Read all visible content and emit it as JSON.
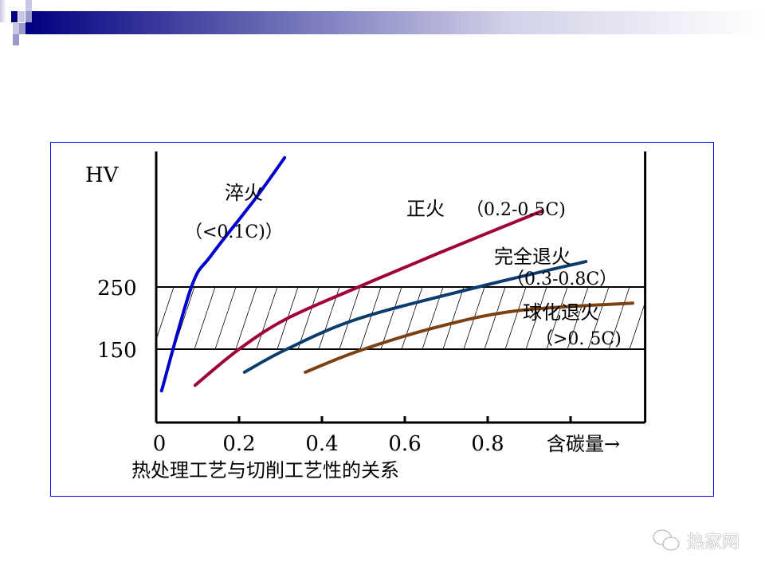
{
  "slide": {
    "accent_color": "#000080",
    "watermark": "热家网",
    "watermark_icon": "wechat-icon"
  },
  "chart_data": {
    "type": "line",
    "title": "",
    "caption": "热处理工艺与切削工艺性的关系",
    "xlabel": "含碳量→",
    "ylabel": "HV",
    "xlim": [
      0,
      1.18
    ],
    "ylim": [
      32,
      468
    ],
    "x_ticks": [
      0,
      0.2,
      0.4,
      0.6,
      0.8
    ],
    "x_tick_labels": [
      "0",
      "0.2",
      "0.4",
      "0.6",
      "0.8"
    ],
    "y_tick_labels": [
      {
        "value": 250,
        "label": "250"
      },
      {
        "value": 150,
        "label": "150"
      }
    ],
    "shaded_band": {
      "from": 150,
      "to": 250,
      "pattern": "diagonal-hatch"
    },
    "grid": false,
    "series": [
      {
        "name": "淬火",
        "name_sub": "（<0.1C)）",
        "color": "#0000cc",
        "x": [
          0.013,
          0.085,
          0.133,
          0.238,
          0.31
        ],
        "y": [
          83,
          250,
          301,
          391,
          458
        ]
      },
      {
        "name": "正火",
        "name_sub": "（0.2-0.5C)",
        "color": "#a0003c",
        "x": [
          0.094,
          0.2,
          0.315,
          0.488,
          0.68,
          0.93
        ],
        "y": [
          92,
          150,
          199,
          250,
          304,
          372
        ]
      },
      {
        "name": "完全退火",
        "name_sub": "（0.3-0.8C）",
        "color": "#0b3c6e",
        "x": [
          0.213,
          0.315,
          0.488,
          0.777,
          1.037
        ],
        "y": [
          113,
          150,
          199,
          250,
          291
        ]
      },
      {
        "name": "球化退火",
        "name_sub": "（>0. 5C)",
        "color": "#7a4212",
        "x": [
          0.36,
          0.488,
          0.68,
          0.873,
          1.15
        ],
        "y": [
          113,
          147,
          186,
          212,
          224
        ]
      }
    ]
  }
}
